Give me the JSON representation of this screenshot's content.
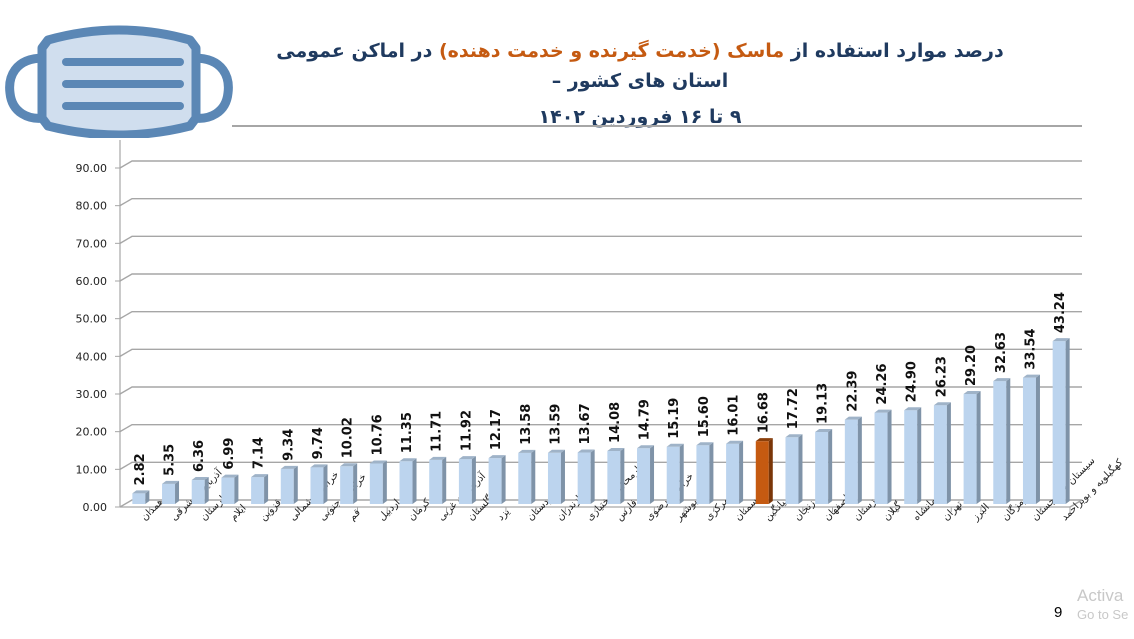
{
  "title": {
    "line1_before": "درصد موارد استفاده از ",
    "line1_highlight": "ماسک (خدمت گیرنده و خدمت دهنده)",
    "line1_after": " در اماکن عمومی استان های کشور –",
    "line2": "۹ تا ۱۶ فروردین ۱۴۰۲"
  },
  "icon": {
    "name": "face-mask-icon",
    "stroke": "#5b87b5",
    "fill": "#d0deee"
  },
  "page_number": "9",
  "watermark": {
    "line1": "Activa",
    "line2": "Go to Se"
  },
  "colors": {
    "bar": "#bcd4ee",
    "bar_side": "#7f93a8",
    "highlight_bar": "#c55a11",
    "highlight_side": "#7a3608",
    "grid": "#a6a6a6",
    "title": "#1f3a5f"
  },
  "chart_data": {
    "type": "bar",
    "title": "درصد موارد استفاده از ماسک (خدمت گیرنده و خدمت دهنده) در اماکن عمومی استان های کشور – ۹ تا ۱۶ فروردین ۱۴۰۲",
    "xlabel": "",
    "ylabel": "",
    "ylim": [
      0,
      90
    ],
    "yticks": [
      "0.00",
      "10.00",
      "20.00",
      "30.00",
      "40.00",
      "50.00",
      "60.00",
      "70.00",
      "80.00",
      "90.00"
    ],
    "grid": true,
    "legend": null,
    "highlight_category": "میانگین",
    "categories": [
      "همدان",
      "آذربایجان شرقی",
      "لرستان",
      "ایلام",
      "قزوین",
      "خراسان شمالی",
      "خراسان جنوبی",
      "قم",
      "اردبیل",
      "کرمان",
      "آذربایجان غربی",
      "گلستان",
      "یزد",
      "کردستان",
      "مازندران",
      "چهارمحال و بختیاری",
      "فارس",
      "خراسان رضوی",
      "بوشهر",
      "مرکزی",
      "سمنان",
      "میانگین",
      "زنجان",
      "اصفهان",
      "خوزستان",
      "گیلان",
      "کرمانشاه",
      "تهران",
      "البرز",
      "هرمزگان",
      "سیستان و بلوچستان",
      "کهگیلویه و بویراحمد"
    ],
    "values": [
      2.82,
      5.35,
      6.36,
      6.99,
      7.14,
      9.34,
      9.74,
      10.02,
      10.76,
      11.35,
      11.71,
      11.92,
      12.17,
      13.58,
      13.59,
      13.67,
      14.08,
      14.79,
      15.19,
      15.6,
      16.01,
      16.68,
      17.72,
      19.13,
      22.39,
      24.26,
      24.9,
      26.23,
      29.2,
      32.63,
      33.54,
      43.24
    ],
    "value_labels": [
      "2.82",
      "5.35",
      "6.36",
      "6.99",
      "7.14",
      "9.34",
      "9.74",
      "10.02",
      "10.76",
      "11.35",
      "11.71",
      "11.92",
      "12.17",
      "13.58",
      "13.59",
      "13.67",
      "14.08",
      "14.79",
      "15.19",
      "15.60",
      "16.01",
      "16.68",
      "17.72",
      "19.13",
      "22.39",
      "24.26",
      "24.90",
      "26.23",
      "29.20",
      "32.63",
      "33.54",
      "43.24"
    ]
  }
}
